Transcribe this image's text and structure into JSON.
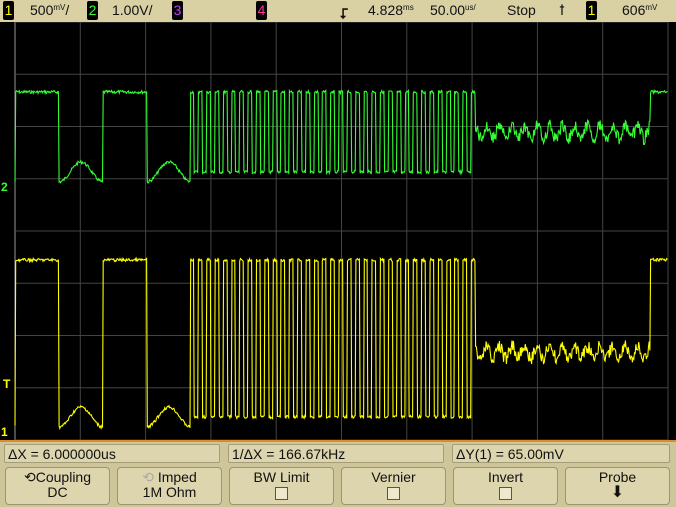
{
  "status_bar": {
    "ch1": {
      "number": "1",
      "scale": "500",
      "unit": "mV",
      "color": "#ffff00"
    },
    "ch2": {
      "number": "2",
      "scale": "1.00V/",
      "color": "#33ff33"
    },
    "ch3": {
      "number": "3",
      "color": "#c040ff"
    },
    "ch4": {
      "number": "4",
      "color": "#ff3399"
    },
    "delay": "4.828",
    "delay_unit": "ms",
    "timebase": "50.00",
    "timebase_unit": "us/",
    "run_state": "Stop",
    "trigger_icon": "rising-edge-icon",
    "trigger_source": "1",
    "trigger_level": "606",
    "trigger_level_unit": "mV"
  },
  "markers": {
    "ch2": "2",
    "trigger": "T",
    "ch1": "1"
  },
  "measurements": {
    "delta_x": "ΔX = 6.000000us",
    "inv_delta_x": "1/ΔX = 166.67kHz",
    "delta_y": "ΔY(1) = 65.00mV"
  },
  "softkeys": [
    {
      "label": "Coupling",
      "value": "DC",
      "icon": "rotary-knob-icon"
    },
    {
      "label": "Imped",
      "value": "1M Ohm",
      "icon": "rotary-knob-icon"
    },
    {
      "label": "BW Limit",
      "checked": false
    },
    {
      "label": "Vernier",
      "checked": false
    },
    {
      "label": "Invert",
      "checked": false
    },
    {
      "label": "Probe",
      "icon": "down-arrow-icon"
    }
  ]
}
